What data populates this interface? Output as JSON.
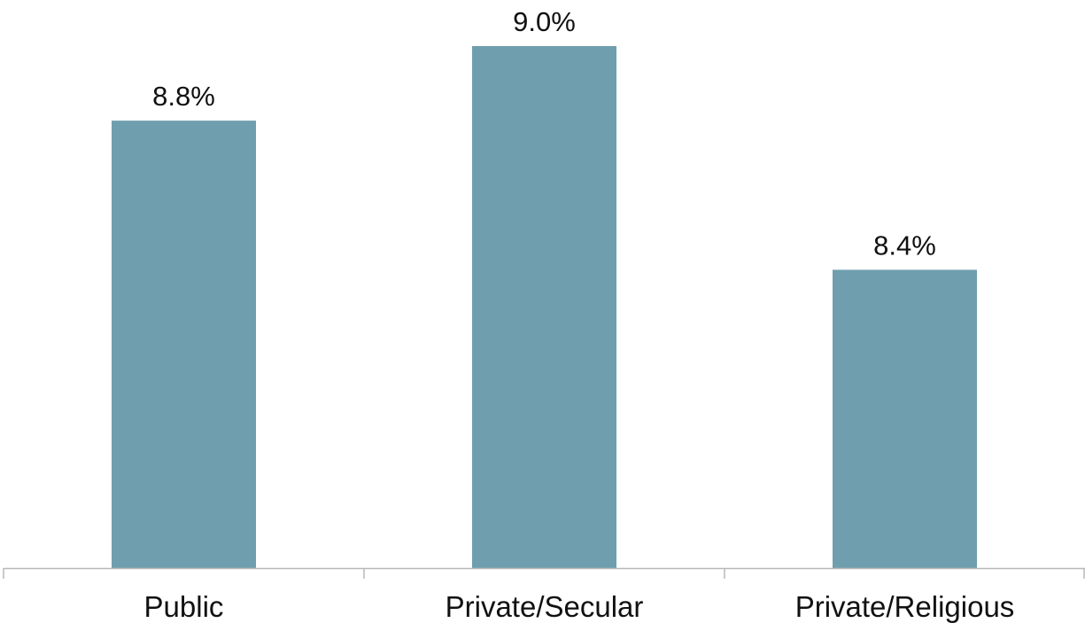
{
  "chart_data": {
    "type": "bar",
    "categories": [
      "Public",
      "Private/Secular",
      "Private/Religious"
    ],
    "values": [
      8.8,
      9.0,
      8.4
    ],
    "data_labels": [
      "8.8%",
      "9.0%",
      "8.4%"
    ],
    "ylim": [
      7.6,
      9.0
    ],
    "grid": false,
    "colors": {
      "bar": "#6f9fae",
      "axis": "#b8b8b8"
    }
  }
}
